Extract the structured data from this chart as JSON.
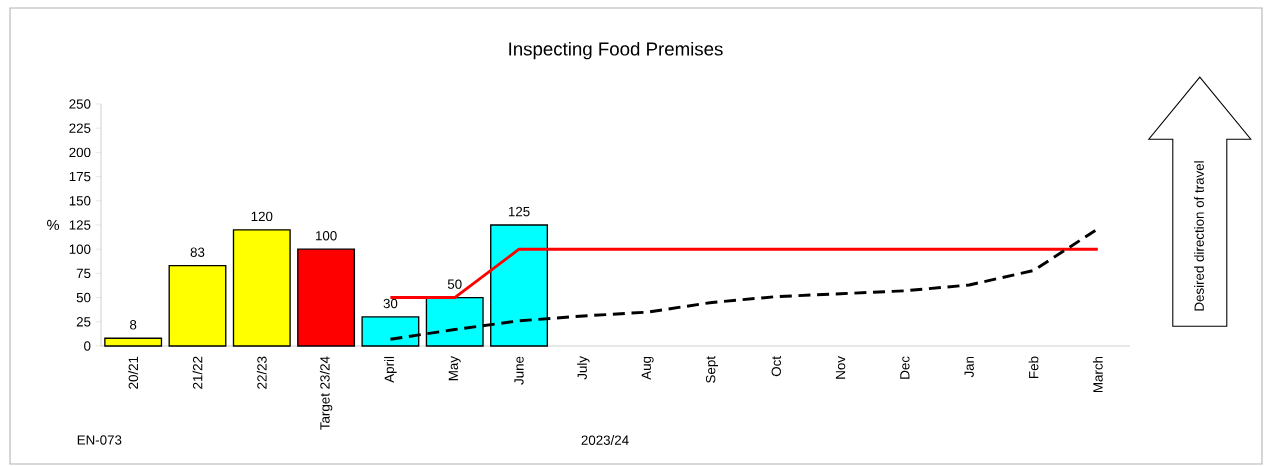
{
  "chart_data": {
    "type": "bar",
    "title": "Inspecting Food Premises",
    "ylabel": "%",
    "categories": [
      "20/21",
      "21/22",
      "22/23",
      "Target 23/24",
      "April",
      "May",
      "June",
      "July",
      "Aug",
      "Sept",
      "Oct",
      "Nov",
      "Dec",
      "Jan",
      "Feb",
      "March"
    ],
    "ylim": [
      0,
      250
    ],
    "yticks": [
      0,
      25,
      50,
      75,
      100,
      125,
      150,
      175,
      200,
      225,
      250
    ],
    "annotations": [
      "EN-073",
      "2023/24",
      "Desired direction of travel"
    ],
    "series": [
      {
        "values": [
          8,
          83,
          120,
          100,
          30,
          50,
          125,
          null,
          null,
          null,
          null,
          null,
          null,
          null,
          null,
          null
        ],
        "colors": [
          "#ffff00",
          "#ffff00",
          "#ffff00",
          "#ff0000",
          "#00ffff",
          "#00ffff",
          "#00ffff",
          null,
          null,
          null,
          null,
          null,
          null,
          null,
          null,
          null
        ],
        "value_labels": [
          "8",
          "83",
          "120",
          "100",
          "30",
          "50",
          "125",
          null,
          null,
          null,
          null,
          null,
          null,
          null,
          null,
          null
        ]
      },
      {
        "type": "line",
        "color": "#ff0000",
        "line_style": "solid",
        "values": [
          null,
          null,
          null,
          null,
          50,
          50,
          100,
          100,
          100,
          100,
          100,
          100,
          100,
          100,
          100,
          100
        ]
      },
      {
        "type": "line",
        "color": "#000000",
        "line_style": "dashed",
        "values": [
          null,
          null,
          null,
          null,
          7,
          17,
          26,
          31,
          35,
          45,
          51,
          54,
          57,
          63,
          78,
          121
        ]
      }
    ]
  }
}
